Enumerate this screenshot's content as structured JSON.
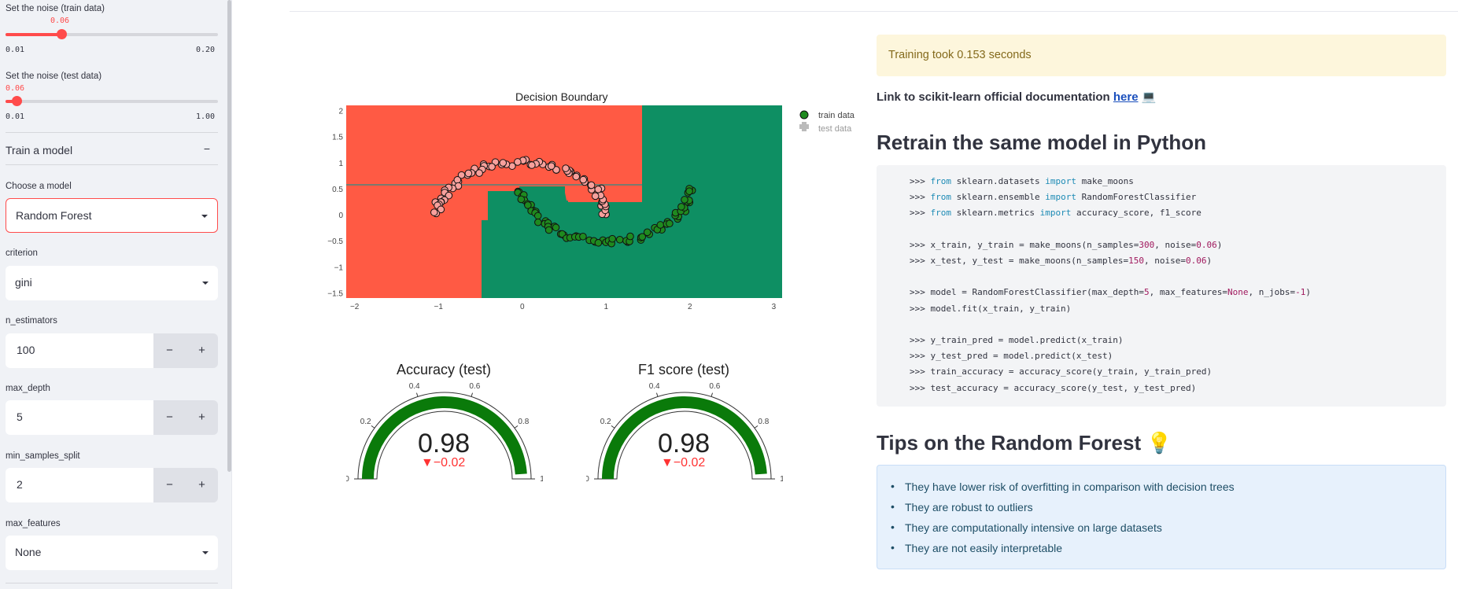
{
  "sidebar": {
    "noise_train": {
      "label": "Set the noise (train data)",
      "value": "0.06",
      "min": "0.01",
      "max": "0.20",
      "fraction": 0.263
    },
    "noise_test": {
      "label": "Set the noise (test data)",
      "value": "0.06",
      "min": "0.01",
      "max": "1.00",
      "fraction": 0.05
    },
    "expander": {
      "title": "Train a model",
      "toggle": "−"
    },
    "model_select": {
      "label": "Choose a model",
      "value": "Random Forest"
    },
    "criterion": {
      "label": "criterion",
      "value": "gini"
    },
    "n_estimators": {
      "label": "n_estimators",
      "value": "100",
      "minus": "−",
      "plus": "+"
    },
    "max_depth": {
      "label": "max_depth",
      "value": "5",
      "minus": "−",
      "plus": "+"
    },
    "min_samples_split": {
      "label": "min_samples_split",
      "value": "2",
      "minus": "−",
      "plus": "+"
    },
    "max_features": {
      "label": "max_features",
      "value": "None"
    }
  },
  "decision_plot": {
    "title": "Decision Boundary",
    "legend": [
      "train data",
      "test data"
    ],
    "x_ticks": [
      "−2",
      "−1",
      "0",
      "1",
      "2",
      "3"
    ],
    "y_ticks": [
      "2",
      "1.5",
      "1",
      "0.5",
      "0",
      "−0.5",
      "−1",
      "−1.5"
    ],
    "colors": {
      "class0": "#ff5a44",
      "class1": "#0e8f63",
      "points0": "#f7a09c",
      "points1": "#1f8a1f"
    }
  },
  "gauges": [
    {
      "title": "Accuracy (test)",
      "value": "0.98",
      "delta": "▼−0.02",
      "ticks": [
        "0",
        "0.2",
        "0.4",
        "0.6",
        "0.8",
        "1"
      ],
      "fraction": 0.98
    },
    {
      "title": "F1 score (test)",
      "value": "0.98",
      "delta": "▼−0.02",
      "ticks": [
        "0",
        "0.2",
        "0.4",
        "0.6",
        "0.8",
        "1"
      ],
      "fraction": 0.98
    }
  ],
  "main": {
    "training_msg": "Training took 0.153 seconds",
    "doc_prefix": "Link to scikit-learn official documentation ",
    "doc_link": "here",
    "doc_icon": "💻",
    "h_retrain": "Retrain the same model in Python",
    "code": [
      [
        ">>> ",
        {
          "kw": "from"
        },
        " sklearn.datasets ",
        {
          "kw": "import"
        },
        " make_moons"
      ],
      [
        ">>> ",
        {
          "kw": "from"
        },
        " sklearn.ensemble ",
        {
          "kw": "import"
        },
        " RandomForestClassifier"
      ],
      [
        ">>> ",
        {
          "kw": "from"
        },
        " sklearn.metrics ",
        {
          "kw": "import"
        },
        " accuracy_score, f1_score"
      ],
      [],
      [
        ">>> x_train, y_train = make_moons(n_samples=",
        {
          "num": "300"
        },
        ", noise=",
        {
          "num": "0.06"
        },
        ")"
      ],
      [
        ">>> x_test, y_test = make_moons(n_samples=",
        {
          "num": "150"
        },
        ", noise=",
        {
          "num": "0.06"
        },
        ")"
      ],
      [],
      [
        ">>> model = RandomForestClassifier(max_depth=",
        {
          "num": "5"
        },
        ", max_features=",
        {
          "num": "None"
        },
        ", n_jobs=",
        {
          "num": "-1"
        },
        ")"
      ],
      [
        ">>> model.fit(x_train, y_train)"
      ],
      [],
      [
        ">>> y_train_pred = model.predict(x_train)"
      ],
      [
        ">>> y_test_pred = model.predict(x_test)"
      ],
      [
        ">>> train_accuracy = accuracy_score(y_train, y_train_pred)"
      ],
      [
        ">>> test_accuracy = accuracy_score(y_test, y_test_pred)"
      ]
    ],
    "h_tips": "Tips on the Random Forest",
    "tips_icon": "💡",
    "tips": [
      "They have lower risk of overfitting in comparison with decision trees",
      "They are robust to outliers",
      "They are computationally intensive on large datasets",
      "They are not easily interpretable"
    ]
  }
}
